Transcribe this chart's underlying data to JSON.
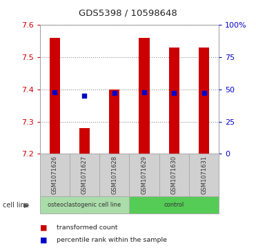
{
  "title": "GDS5398 / 10598648",
  "samples": [
    "GSM1071626",
    "GSM1071627",
    "GSM1071628",
    "GSM1071629",
    "GSM1071630",
    "GSM1071631"
  ],
  "transformed_counts": [
    7.56,
    7.28,
    7.4,
    7.56,
    7.53,
    7.53
  ],
  "percentile_ranks": [
    48,
    45,
    47,
    48,
    47,
    47
  ],
  "ylim": [
    7.2,
    7.6
  ],
  "yticks": [
    7.2,
    7.3,
    7.4,
    7.5,
    7.6
  ],
  "right_yticks": [
    0,
    25,
    50,
    75,
    100
  ],
  "right_yticklabels": [
    "0",
    "25",
    "50",
    "75",
    "100%"
  ],
  "bar_color": "#cc0000",
  "dot_color": "#0000cc",
  "bar_bottom": 7.2,
  "cell_line_groups": [
    {
      "label": "osteoclastogenic cell line",
      "indices": [
        0,
        1,
        2
      ],
      "color": "#aaddaa"
    },
    {
      "label": "control",
      "indices": [
        3,
        4,
        5
      ],
      "color": "#55cc55"
    }
  ],
  "legend_items": [
    {
      "color": "#cc0000",
      "label": "transformed count"
    },
    {
      "color": "#0000cc",
      "label": "percentile rank within the sample"
    }
  ],
  "cell_line_label": "cell line",
  "background_color": "#ffffff",
  "plot_bg_color": "#ffffff",
  "grid_color": "#888888",
  "tick_color_left": "#cc0000",
  "tick_color_right": "#0000cc",
  "sample_label_color": "#cccccc",
  "bar_width": 0.35
}
